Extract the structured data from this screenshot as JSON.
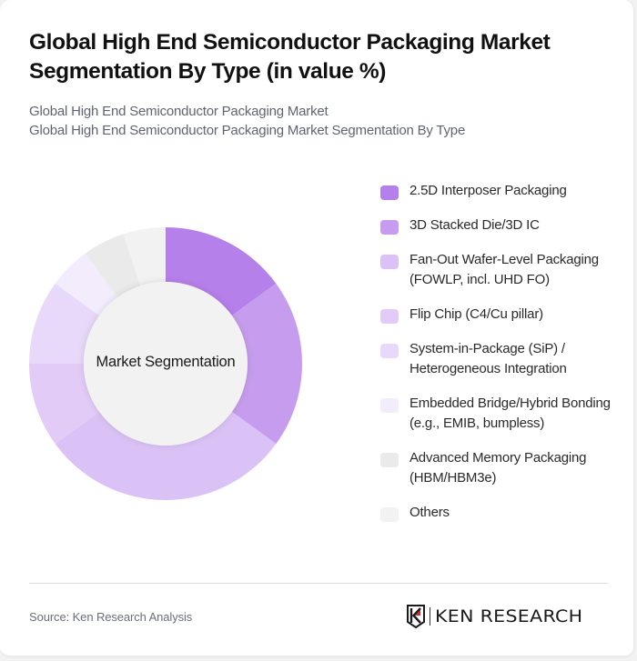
{
  "header": {
    "title": "Global High End Semiconductor Packaging Market Segmentation By Type (in value %)",
    "subtitle_line1": "Global High End Semiconductor Packaging Market",
    "subtitle_line2": "Global High End Semiconductor Packaging Market Segmentation By Type"
  },
  "chart": {
    "center_label": "Market Segmentation"
  },
  "legend": {
    "items": [
      {
        "label": "2.5D Interposer Packaging",
        "color": "#B580EA"
      },
      {
        "label": "3D Stacked Die/3D IC",
        "color": "#C69DEE"
      },
      {
        "label": "Fan-Out Wafer-Level Packaging (FOWLP, incl. UHD FO)",
        "color": "#DBC2F6"
      },
      {
        "label": "Flip Chip (C4/Cu pillar)",
        "color": "#E2CCF7"
      },
      {
        "label": "System-in-Package (SiP) / Heterogeneous Integration",
        "color": "#E8D8F9"
      },
      {
        "label": "Embedded Bridge/Hybrid Bonding (e.g., EMIB, bumpless)",
        "color": "#F2ECFC"
      },
      {
        "label": "Advanced Memory Packaging (HBM/HBM3e)",
        "color": "#EAEAEA"
      },
      {
        "label": "Others",
        "color": "#F2F2F2"
      }
    ]
  },
  "footer": {
    "source": "Source: Ken Research Analysis",
    "logo_text": "KEN RESEARCH"
  },
  "chart_data": {
    "type": "pie",
    "title": "Global High End Semiconductor Packaging Market Segmentation By Type (in value %)",
    "subtitle": "Global High End Semiconductor Packaging Market Segmentation By Type",
    "center_label": "Market Segmentation",
    "donut": true,
    "categories": [
      "2.5D Interposer Packaging",
      "3D Stacked Die/3D IC",
      "Fan-Out Wafer-Level Packaging (FOWLP, incl. UHD FO)",
      "Flip Chip (C4/Cu pillar)",
      "System-in-Package (SiP) / Heterogeneous Integration",
      "Embedded Bridge/Hybrid Bonding (e.g., EMIB, bumpless)",
      "Advanced Memory Packaging (HBM/HBM3e)",
      "Others"
    ],
    "values": [
      15,
      20,
      30,
      10,
      10,
      5,
      5,
      5
    ],
    "colors": [
      "#B580EA",
      "#C69DEE",
      "#DBC2F6",
      "#E2CCF7",
      "#E8D8F9",
      "#F2ECFC",
      "#EAEAEA",
      "#F2F2F2"
    ],
    "unit": "%",
    "legend_position": "right",
    "start_angle_deg": 0,
    "direction": "clockwise"
  }
}
